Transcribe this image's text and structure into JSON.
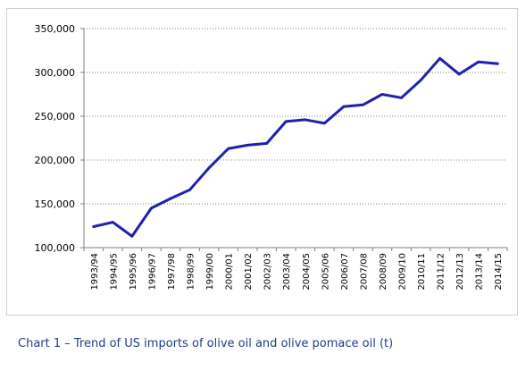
{
  "caption": "Chart 1 – Trend of US imports of olive oil and olive pomace oil (t)",
  "colors": {
    "series": "#1f1fb0",
    "grid": "#7f7f7f",
    "axis": "#808080",
    "caption": "#1f3d8a"
  },
  "chart_data": {
    "type": "line",
    "title": "",
    "xlabel": "",
    "ylabel": "",
    "ylim": [
      100000,
      350000
    ],
    "yticks": [
      "100,000",
      "150,000",
      "200,000",
      "250,000",
      "300,000",
      "350,000"
    ],
    "ytick_values": [
      100000,
      150000,
      200000,
      250000,
      300000,
      350000
    ],
    "grid": true,
    "legend": "none",
    "categories": [
      "1993/94",
      "1994/95",
      "1995/96",
      "1996/97",
      "1997/98",
      "1998/99",
      "1999/00",
      "2000/01",
      "2001/02",
      "2002/03",
      "2003/04",
      "2004/05",
      "2005/06",
      "2006/07",
      "2007/08",
      "2008/09",
      "2009/10",
      "2010/11",
      "2011/12",
      "2012/13",
      "2013/14",
      "2014/15"
    ],
    "series": [
      {
        "values": [
          124000,
          129000,
          113000,
          145000,
          156000,
          166000,
          191000,
          213000,
          217000,
          219000,
          244000,
          246000,
          242000,
          261000,
          263000,
          275000,
          271000,
          291000,
          316000,
          298000,
          312000,
          310000
        ]
      }
    ]
  }
}
